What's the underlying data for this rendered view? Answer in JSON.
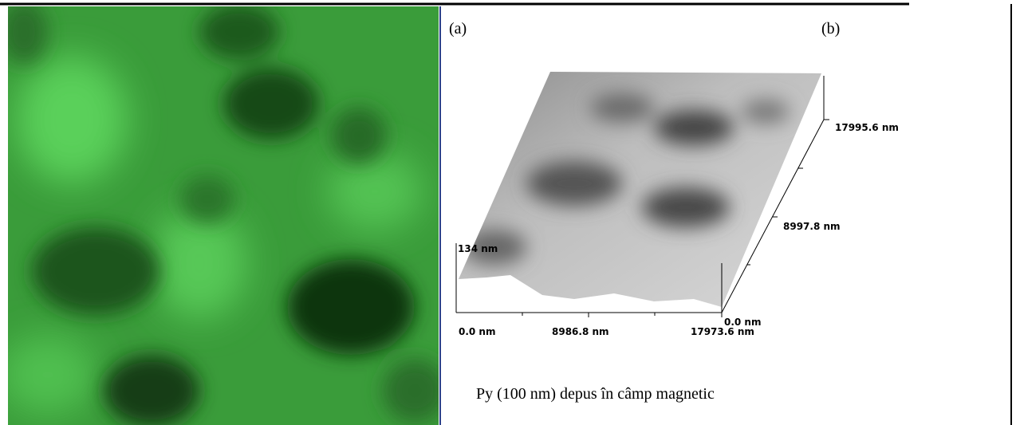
{
  "figure": {
    "panel_labels": [
      "(a)",
      "(b)"
    ],
    "surface_axes": {
      "z_label": "134 nm",
      "x_labels": [
        "0.0 nm",
        "8986.8 nm",
        "17973.6 nm"
      ],
      "y_labels": [
        "0.0 nm",
        "8997.8 nm",
        "17995.6 nm"
      ]
    },
    "caption": "Py (100 nm) depus în câmp magnetic"
  }
}
